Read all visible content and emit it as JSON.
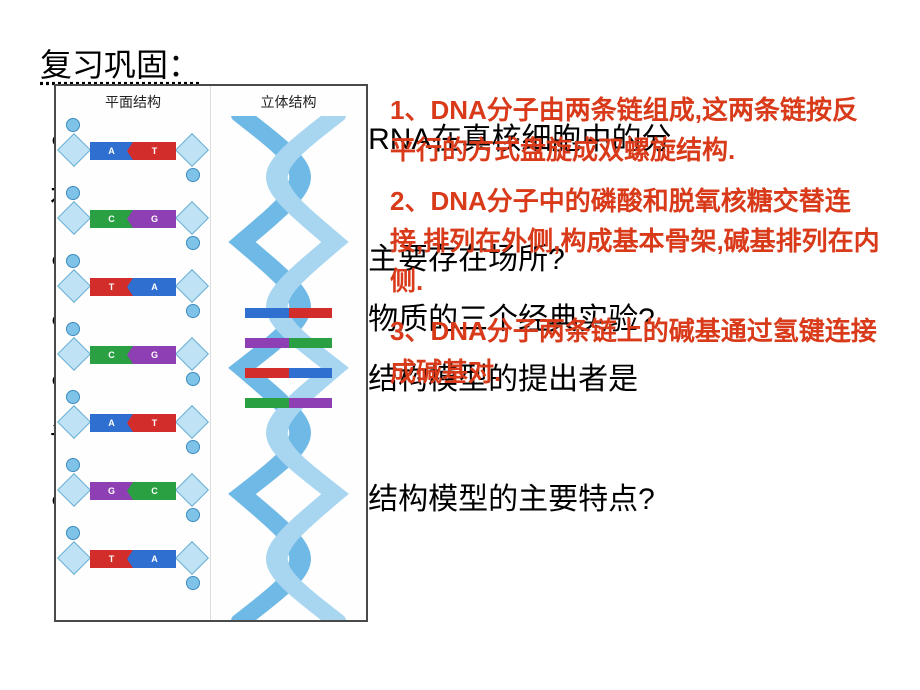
{
  "slide": {
    "review_title": "复习巩固：",
    "diagram": {
      "label_left": "平面结构",
      "label_right": "立体结构",
      "colors": {
        "A": "#2f6fd0",
        "T": "#d22d2a",
        "C": "#2aa043",
        "G": "#8e3fb3",
        "sugar": "#bfe3f5",
        "sugar_border": "#6aaed6",
        "phosphate": "#7fc4e8",
        "phosphate_border": "#3a8bbd",
        "helix_strand": "#6fb9e6"
      },
      "planar_rungs": [
        {
          "left": "A",
          "right": "T"
        },
        {
          "left": "C",
          "right": "G"
        },
        {
          "left": "T",
          "right": "A"
        },
        {
          "left": "C",
          "right": "G"
        },
        {
          "left": "A",
          "right": "T"
        },
        {
          "left": "G",
          "right": "C"
        },
        {
          "left": "T",
          "right": "A"
        }
      ],
      "helix_rungs": [
        {
          "top_pct": 38,
          "left": "A",
          "right": "T"
        },
        {
          "top_pct": 44,
          "left": "G",
          "right": "C"
        },
        {
          "top_pct": 50,
          "left": "T",
          "right": "A"
        },
        {
          "top_pct": 56,
          "left": "C",
          "right": "G"
        }
      ]
    },
    "background_questions": [
      "●　　　　　　　　　和RNA在真核细胞中的分",
      "布",
      "●　　　　　　　　　的主要存在场所?",
      "●　　　　　　　　　专物质的三个经典实验?",
      "●　　　　　　　　　旋结构模型的提出者是",
      "谁",
      "●　　　　　　　　　旋结构模型的主要特点?"
    ],
    "red_overlay": {
      "p1": "1、DNA分子由两条链组成,这两条链按反平行的方式盘旋成双螺旋结构.",
      "p2": "2、DNA分子中的磷酸和脱氧核糖交替连接,排列在外侧,构成基本骨架,碱基排列在内侧.",
      "p3": "3、DNA分子两条链上的碱基通过氢键连接成碱基对."
    }
  },
  "styles": {
    "slide_bg": "#ffffff",
    "text_black": "#000000",
    "text_red": "#d83a1a",
    "title_fontsize": 32,
    "bg_text_fontsize": 30,
    "red_text_fontsize": 26
  }
}
